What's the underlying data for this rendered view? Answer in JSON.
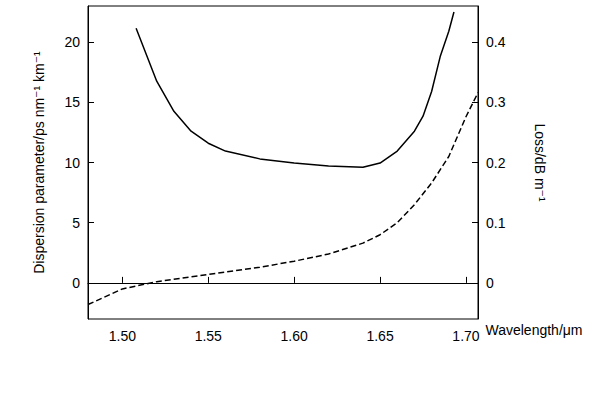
{
  "chart_data": {
    "type": "line",
    "xlabel": "Wavelength/μm",
    "ylabel": "Dispersion parameter/ps nm⁻¹ km⁻¹",
    "y2label": "Loss/dB m⁻¹",
    "xlim": [
      1.48,
      1.707
    ],
    "xticks": [
      {
        "value": 1.5,
        "label": "1.50"
      },
      {
        "value": 1.55,
        "label": "1.55"
      },
      {
        "value": 1.6,
        "label": "1.60"
      },
      {
        "value": 1.65,
        "label": "1.65"
      },
      {
        "value": 1.7,
        "label": "1.70"
      }
    ],
    "ylim": [
      -3,
      23
    ],
    "yticks": [
      0,
      5,
      10,
      15,
      20
    ],
    "y2lim": [
      -0.06,
      0.46
    ],
    "y2ticks": [
      0,
      0.1,
      0.2,
      0.3,
      0.4
    ],
    "grid": false,
    "series": [
      {
        "color": "#000000",
        "line_style": "solid",
        "axis": "y2",
        "x": [
          1.508,
          1.52,
          1.53,
          1.54,
          1.55,
          1.56,
          1.58,
          1.6,
          1.62,
          1.64,
          1.65,
          1.66,
          1.67,
          1.675,
          1.68,
          1.685,
          1.69,
          1.693
        ],
        "values": [
          0.423,
          0.335,
          0.285,
          0.252,
          0.232,
          0.219,
          0.206,
          0.199,
          0.194,
          0.192,
          0.199,
          0.219,
          0.252,
          0.277,
          0.318,
          0.376,
          0.418,
          0.45
        ]
      },
      {
        "color": "#000000",
        "line_style": "dashed",
        "x": [
          1.48,
          1.5,
          1.52,
          1.55,
          1.58,
          1.6,
          1.62,
          1.64,
          1.65,
          1.66,
          1.67,
          1.68,
          1.69,
          1.7,
          1.707
        ],
        "values": [
          -1.8,
          -0.5,
          0.1,
          0.7,
          1.3,
          1.8,
          2.4,
          3.3,
          4.0,
          5.0,
          6.5,
          8.3,
          10.5,
          13.8,
          15.8
        ]
      }
    ]
  }
}
